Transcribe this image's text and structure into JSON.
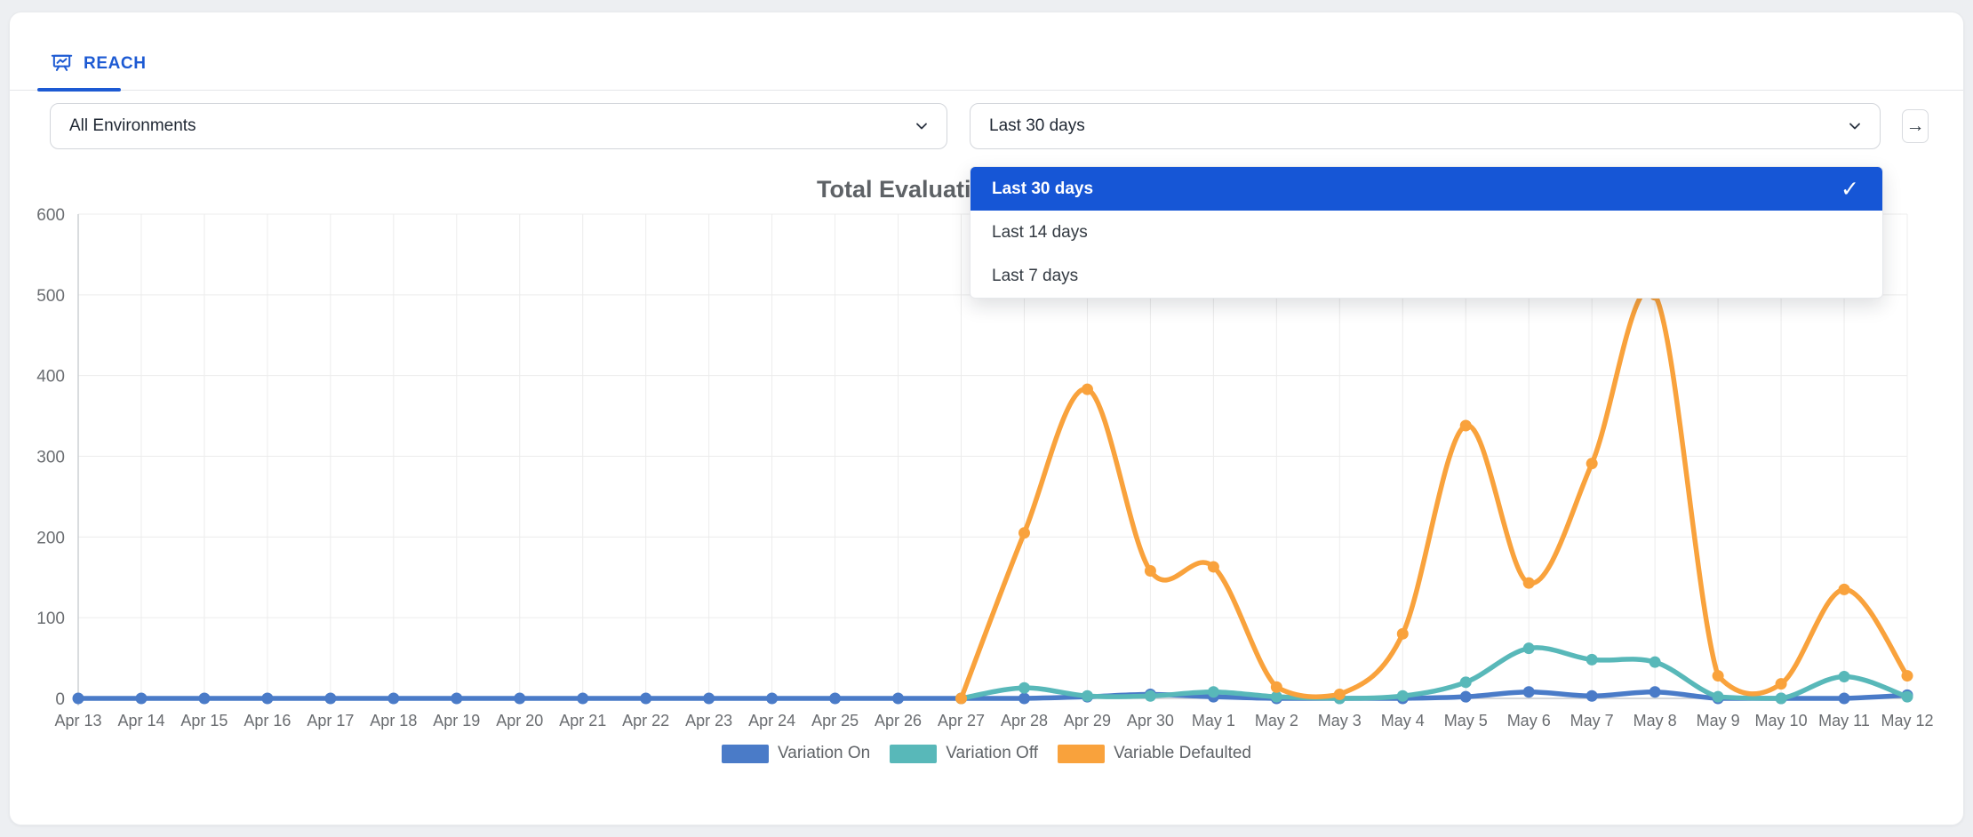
{
  "tabs": {
    "reach": {
      "label": "REACH"
    }
  },
  "filters": {
    "environment_select": {
      "value": "All Environments"
    },
    "date_range_select": {
      "value": "Last 30 days"
    }
  },
  "date_range_menu": {
    "options": [
      {
        "label": "Last 30 days",
        "selected": true
      },
      {
        "label": "Last 14 days",
        "selected": false
      },
      {
        "label": "Last 7 days",
        "selected": false
      }
    ],
    "selected_bg": "#1656d6"
  },
  "chart_data": {
    "type": "line",
    "title": "Total Evaluations",
    "x": [
      "Apr 13",
      "Apr 14",
      "Apr 15",
      "Apr 16",
      "Apr 17",
      "Apr 18",
      "Apr 19",
      "Apr 20",
      "Apr 21",
      "Apr 22",
      "Apr 23",
      "Apr 24",
      "Apr 25",
      "Apr 26",
      "Apr 27",
      "Apr 28",
      "Apr 29",
      "Apr 30",
      "May 1",
      "May 2",
      "May 3",
      "May 4",
      "May 5",
      "May 6",
      "May 7",
      "May 8",
      "May 9",
      "May 10",
      "May 11",
      "May 12"
    ],
    "ylim": [
      0,
      600
    ],
    "y_ticks": [
      0,
      100,
      200,
      300,
      400,
      500,
      600
    ],
    "grid": true,
    "legend_position": "bottom",
    "series": [
      {
        "name": "Variation On",
        "color": "#4a7bc8",
        "values": [
          0,
          0,
          0,
          0,
          0,
          0,
          0,
          0,
          0,
          0,
          0,
          0,
          0,
          0,
          0,
          0,
          2,
          5,
          2,
          0,
          0,
          0,
          2,
          8,
          3,
          8,
          0,
          0,
          0,
          4
        ]
      },
      {
        "name": "Variation Off",
        "color": "#58b8b9",
        "values": [
          null,
          null,
          null,
          null,
          null,
          null,
          null,
          null,
          null,
          null,
          null,
          null,
          null,
          null,
          0,
          13,
          3,
          3,
          8,
          2,
          0,
          3,
          20,
          62,
          48,
          45,
          2,
          0,
          27,
          2
        ]
      },
      {
        "name": "Variable Defaulted",
        "color": "#f9a23c",
        "values": [
          null,
          null,
          null,
          null,
          null,
          null,
          null,
          null,
          null,
          null,
          null,
          null,
          null,
          null,
          0,
          205,
          383,
          158,
          163,
          14,
          5,
          80,
          338,
          143,
          291,
          500,
          28,
          18,
          135,
          28
        ]
      }
    ],
    "colors": {
      "grid": "#ececec",
      "axis": "#c9ccd0",
      "tick_label": "#6a6d71"
    }
  }
}
